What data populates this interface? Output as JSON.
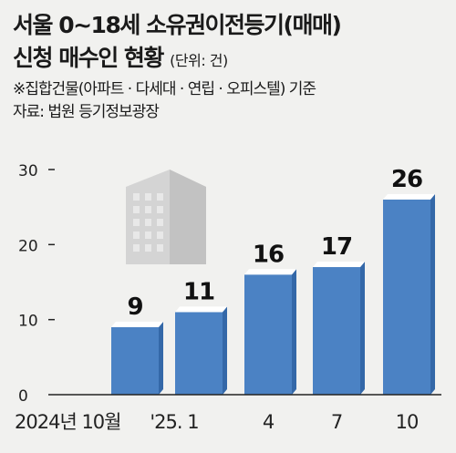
{
  "header": {
    "title_line1": "서울 0~18세 소유권이전등기(매매)",
    "title_line2": "신청 매수인 현황",
    "unit": "(단위: 건)",
    "note": "※집합건물(아파트 · 다세대 · 연립 · 오피스텔) 기준",
    "source": "자료: 법원 등기정보광장"
  },
  "chart_data": {
    "type": "bar",
    "categories": [
      "2024년 10월",
      "'25. 1",
      "4",
      "7",
      "10"
    ],
    "values": [
      9,
      11,
      16,
      17,
      26
    ],
    "ylim": [
      0,
      30
    ],
    "yticks": [
      0,
      10,
      20,
      30
    ],
    "grid": false,
    "colors": {
      "bar": "#4b82c4",
      "bar_dark": "#3468a8",
      "bar_top": "#ffffff",
      "axis": "#222222"
    },
    "decoration": "building-icon"
  }
}
